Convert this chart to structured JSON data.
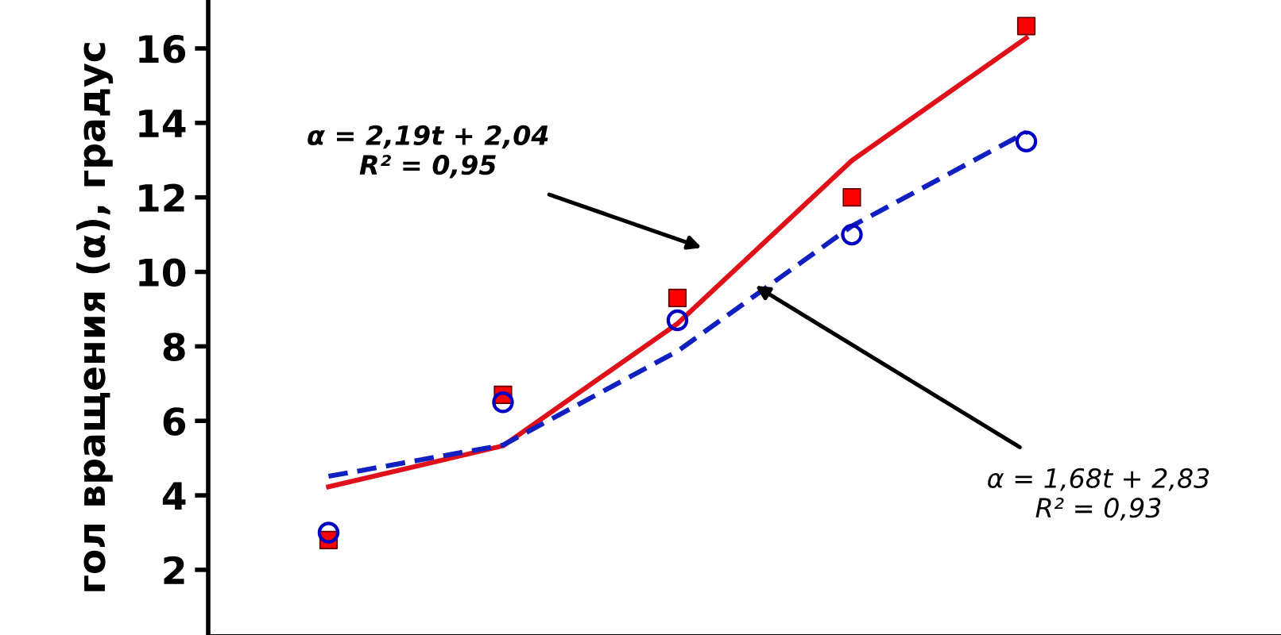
{
  "chart_data": {
    "type": "scatter",
    "ylabel": "гол вращения (α), градус",
    "categories": [
      null,
      null,
      null,
      null,
      null
    ],
    "ylim": [
      0.25,
      17.3
    ],
    "yticks": [
      2,
      4,
      6,
      8,
      10,
      12,
      14,
      16
    ],
    "tick_labels": "y",
    "series": [
      {
        "color": "#ff0000",
        "marker": "square",
        "values": [
          2.8,
          6.7,
          9.3,
          12.0,
          16.6
        ]
      },
      {
        "color": "#0000c0",
        "marker": "circle",
        "values": [
          3.0,
          6.5,
          8.7,
          11.0,
          13.5
        ]
      },
      {
        "type": "line",
        "color": "#e0101a",
        "line_style": "solid",
        "values": [
          4.23,
          5.33,
          8.61,
          12.99,
          16.28
        ]
      },
      {
        "type": "line",
        "color": "#1020c0",
        "line_style": "dashed",
        "values": [
          4.51,
          5.35,
          7.87,
          11.23,
          13.75
        ]
      }
    ],
    "annotations": [
      "α = 2,19t + 2,04\nR² = 0,95",
      "α = 1,68t + 2,83\nR² = 0,93"
    ]
  }
}
